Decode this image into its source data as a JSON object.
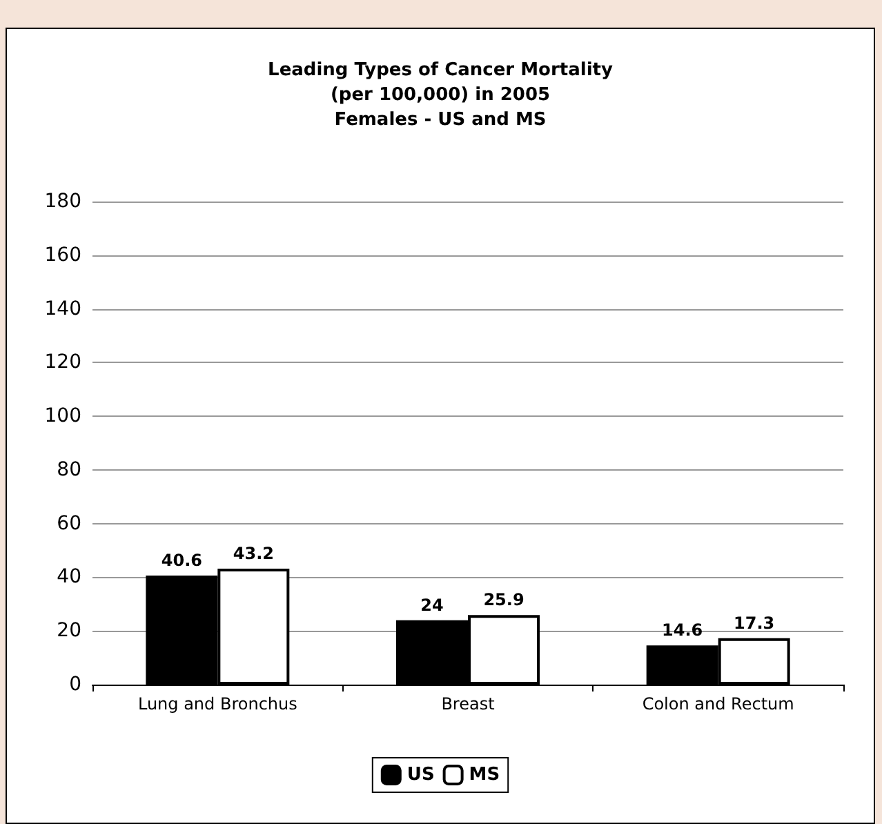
{
  "chart_data": {
    "type": "bar",
    "title": "Leading Types of Cancer Mortality\n(per 100,000) in 2005\nFemales - US and MS",
    "categories": [
      "Lung and Bronchus",
      "Breast",
      "Colon and Rectum"
    ],
    "series": [
      {
        "name": "US",
        "color": "#000000",
        "values": [
          40.6,
          24,
          14.6
        ]
      },
      {
        "name": "MS",
        "color": "#ffffff",
        "values": [
          43.2,
          25.9,
          17.3
        ]
      }
    ],
    "ylim": [
      0,
      180
    ],
    "yticks": [
      0,
      20,
      40,
      60,
      80,
      100,
      120,
      140,
      160,
      180
    ],
    "grid": "y",
    "legend": "bottom",
    "data_labels": true
  }
}
